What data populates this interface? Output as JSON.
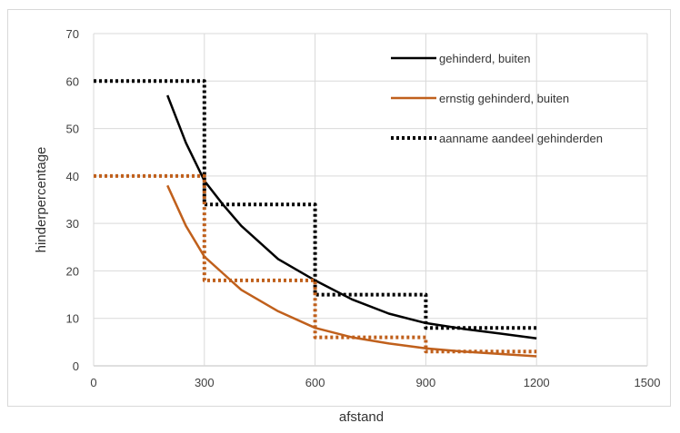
{
  "chart_data": {
    "type": "line",
    "xlabel": "afstand",
    "ylabel": "hinderpercentage",
    "xlim": [
      0,
      1500
    ],
    "ylim": [
      0,
      70
    ],
    "x_ticks": [
      "0",
      "300",
      "600",
      "900",
      "1200",
      "1500"
    ],
    "y_ticks": [
      "0",
      "10",
      "20",
      "30",
      "40",
      "50",
      "60",
      "70"
    ],
    "grid": true,
    "legend_position": "top-right",
    "series": [
      {
        "name": "gehinderd, buiten",
        "color": "#000000",
        "style": "solid",
        "x": [
          200,
          250,
          300,
          350,
          400,
          500,
          600,
          700,
          800,
          900,
          1000,
          1100,
          1200
        ],
        "y": [
          57,
          47,
          39,
          34,
          29.5,
          22.5,
          18,
          14,
          11,
          9,
          7.8,
          6.8,
          5.8
        ]
      },
      {
        "name": "ernstig gehinderd, buiten",
        "color": "#c0601c",
        "style": "solid",
        "x": [
          200,
          250,
          300,
          350,
          400,
          500,
          600,
          700,
          800,
          900,
          1000,
          1100,
          1200
        ],
        "y": [
          38,
          29.5,
          23,
          19.5,
          16,
          11.5,
          8,
          6,
          4.7,
          3.7,
          3,
          2.5,
          2
        ]
      },
      {
        "name": "aanname aandeel gehinderden",
        "color": "#000000",
        "style": "dotted",
        "x": [
          0,
          300,
          300,
          600,
          600,
          900,
          900,
          1200
        ],
        "y": [
          60,
          60,
          34,
          34,
          15,
          15,
          8,
          8
        ]
      },
      {
        "name": "",
        "color": "#c0601c",
        "style": "dotted",
        "x": [
          0,
          300,
          300,
          600,
          600,
          900,
          900,
          1200
        ],
        "y": [
          40,
          40,
          18,
          18,
          6,
          6,
          3,
          3
        ]
      }
    ]
  }
}
